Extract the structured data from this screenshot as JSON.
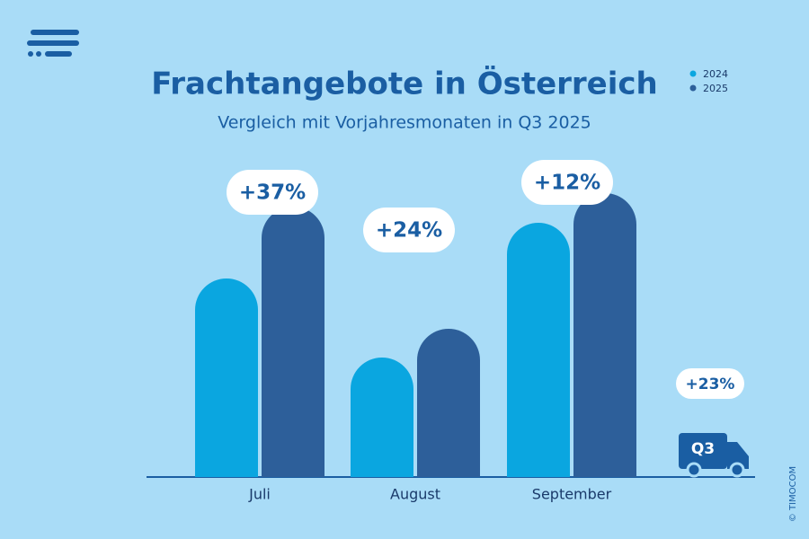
{
  "chart_data": {
    "type": "bar",
    "title": "Frachtangebote in Österreich",
    "subtitle": "Vergleich mit Vorjahresmonaten in Q3 2025",
    "categories": [
      "Juli",
      "August",
      "September"
    ],
    "series": [
      {
        "name": "2024",
        "color": "#0aa6e0",
        "values": [
          221,
          133,
          283
        ]
      },
      {
        "name": "2025",
        "color": "#2d5f9a",
        "values": [
          301,
          165,
          316
        ]
      }
    ],
    "ylim": [
      0,
      340
    ],
    "changes": [
      "+37%",
      "+24%",
      "+12%"
    ],
    "total": {
      "label": "Q3",
      "change": "+23%"
    },
    "copyright": "© TIMOCOM"
  }
}
